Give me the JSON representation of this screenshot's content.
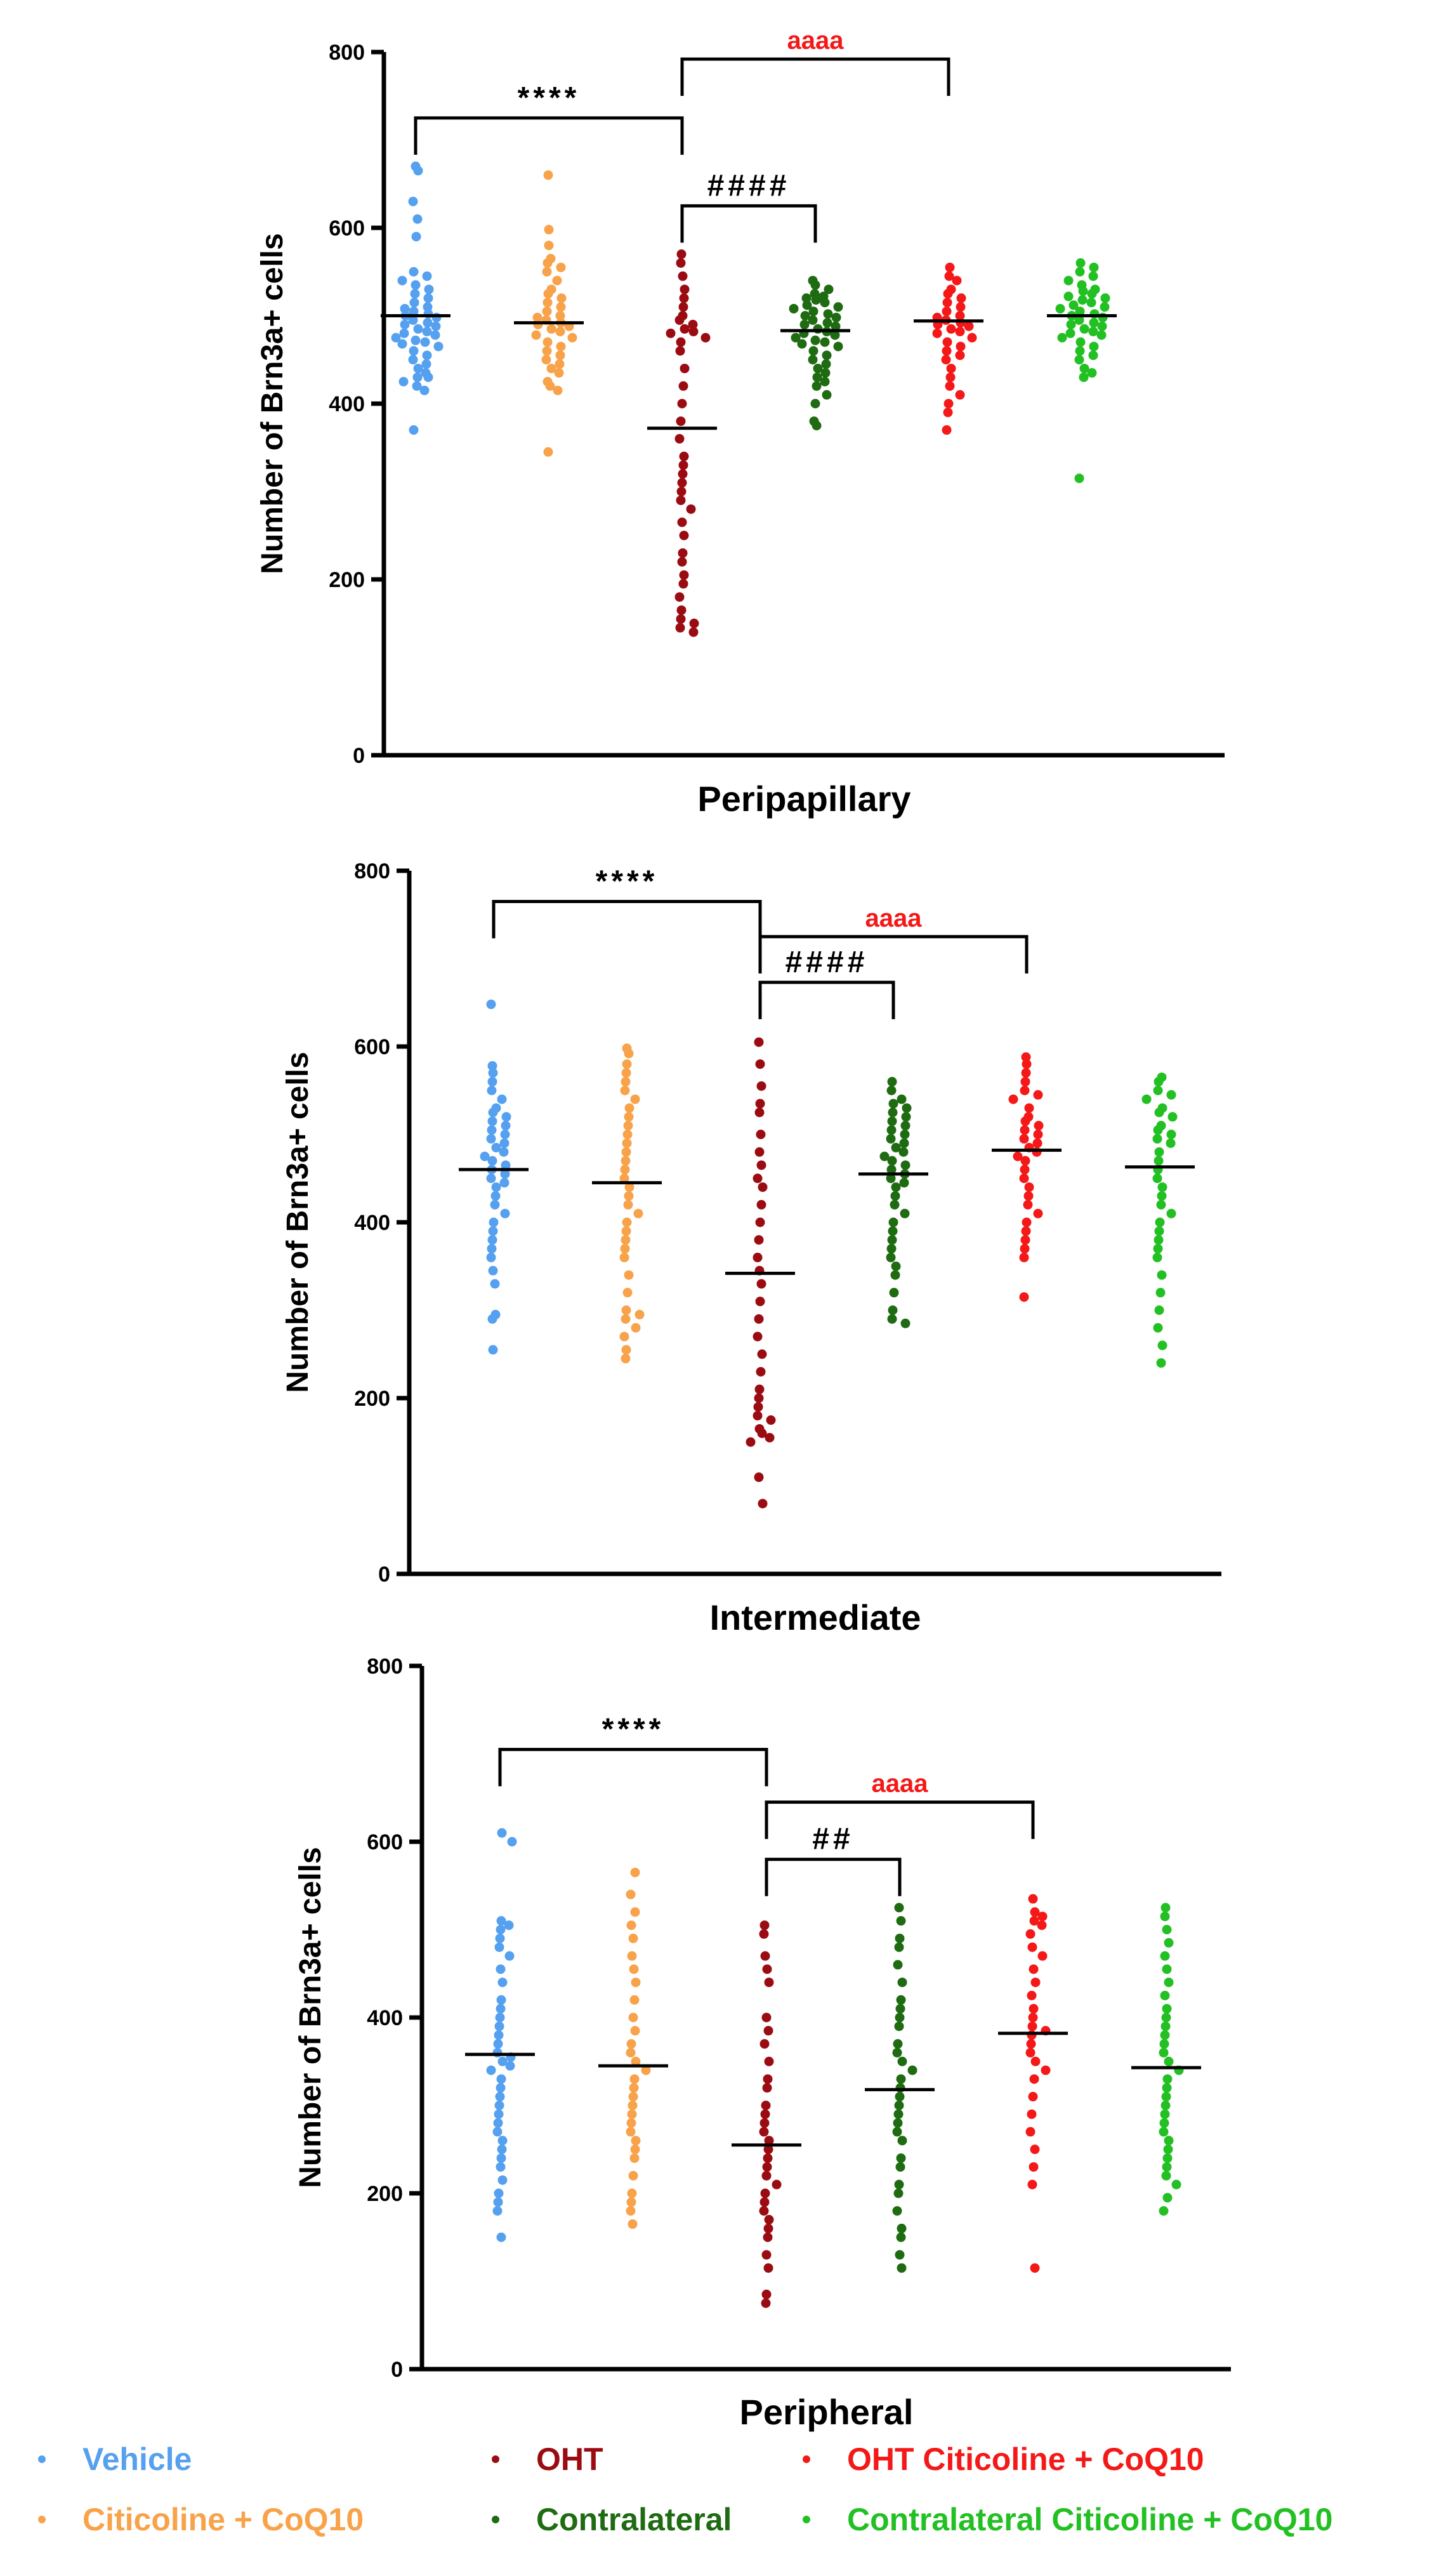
{
  "colors": {
    "Vehicle": "#56a0f0",
    "Citicoline + CoQ10": "#f8a24a",
    "OHT": "#9a0c12",
    "Contralateral": "#1e6b12",
    "OHT Citicoline + CoQ10": "#f41818",
    "Contralateral Citicoline + CoQ10": "#22c022",
    "annotation_red": "#f41818",
    "annotation_black": "#000000"
  },
  "legend": [
    {
      "label": "Vehicle",
      "color": "#56a0f0"
    },
    {
      "label": "OHT",
      "color": "#9a0c12"
    },
    {
      "label": "OHT Citicoline + CoQ10",
      "color": "#f41818"
    },
    {
      "label": "Citicoline + CoQ10",
      "color": "#f8a24a"
    },
    {
      "label": "Contralateral",
      "color": "#1e6b12"
    },
    {
      "label": "Contralateral Citicoline + CoQ10",
      "color": "#22c022"
    }
  ],
  "chart_data": [
    {
      "type": "scatter",
      "xlabel": "Peripapillary",
      "ylabel": "Number of Brn3a+ cells",
      "ylim": [
        0,
        800
      ],
      "yticks": [
        "0",
        "200",
        "400",
        "600",
        "800"
      ],
      "series": [
        {
          "name": "Vehicle",
          "median": 500,
          "values": [
            670,
            665,
            630,
            610,
            590,
            550,
            545,
            540,
            535,
            530,
            525,
            520,
            515,
            510,
            508,
            505,
            502,
            500,
            498,
            495,
            492,
            490,
            488,
            485,
            482,
            480,
            478,
            475,
            472,
            470,
            468,
            465,
            460,
            455,
            450,
            445,
            440,
            435,
            430,
            430,
            425,
            420,
            415,
            370
          ]
        },
        {
          "name": "Citicoline + CoQ10",
          "median": 492,
          "values": [
            660,
            598,
            580,
            565,
            560,
            555,
            550,
            540,
            530,
            525,
            520,
            515,
            510,
            505,
            500,
            498,
            495,
            492,
            490,
            488,
            485,
            482,
            478,
            475,
            470,
            465,
            460,
            455,
            450,
            445,
            440,
            435,
            425,
            420,
            415,
            345
          ]
        },
        {
          "name": "OHT",
          "median": 372,
          "values": [
            570,
            560,
            545,
            530,
            520,
            510,
            500,
            495,
            490,
            485,
            482,
            480,
            475,
            470,
            460,
            440,
            420,
            400,
            380,
            360,
            340,
            330,
            320,
            310,
            300,
            290,
            280,
            265,
            250,
            230,
            220,
            205,
            195,
            180,
            165,
            155,
            150,
            145,
            140
          ]
        },
        {
          "name": "Contralateral",
          "median": 483,
          "values": [
            540,
            535,
            530,
            525,
            522,
            520,
            518,
            515,
            512,
            510,
            508,
            505,
            502,
            500,
            498,
            495,
            492,
            490,
            488,
            485,
            482,
            480,
            478,
            475,
            472,
            470,
            468,
            465,
            460,
            455,
            450,
            445,
            440,
            435,
            430,
            425,
            420,
            410,
            400,
            380,
            375
          ]
        },
        {
          "name": "OHT Citicoline + CoQ10",
          "median": 494,
          "values": [
            555,
            545,
            540,
            530,
            525,
            520,
            515,
            510,
            505,
            500,
            498,
            495,
            492,
            490,
            488,
            485,
            482,
            480,
            475,
            470,
            465,
            460,
            455,
            450,
            440,
            430,
            420,
            410,
            400,
            390,
            370
          ]
        },
        {
          "name": "Contralateral Citicoline + CoQ10",
          "median": 500,
          "values": [
            560,
            555,
            550,
            545,
            540,
            535,
            530,
            528,
            525,
            522,
            520,
            518,
            515,
            512,
            510,
            508,
            505,
            502,
            500,
            498,
            495,
            492,
            490,
            488,
            485,
            482,
            480,
            478,
            475,
            470,
            465,
            460,
            455,
            450,
            440,
            435,
            430,
            315
          ]
        }
      ],
      "annotations": [
        {
          "text": "****",
          "from": "Vehicle",
          "to": "OHT",
          "level": 725,
          "color": "#000000"
        },
        {
          "text": "aaaa",
          "from": "OHT",
          "to": "OHT Citicoline + CoQ10",
          "level": 792,
          "color": "#f41818"
        },
        {
          "text": "####",
          "from": "OHT",
          "to": "Contralateral",
          "level": 625,
          "color": "#000000"
        }
      ]
    },
    {
      "type": "scatter",
      "xlabel": "Intermediate",
      "ylabel": "Number of Brn3a+ cells",
      "ylim": [
        0,
        800
      ],
      "yticks": [
        "0",
        "200",
        "400",
        "600",
        "800"
      ],
      "series": [
        {
          "name": "Vehicle",
          "median": 460,
          "values": [
            648,
            578,
            570,
            560,
            550,
            540,
            530,
            525,
            520,
            515,
            510,
            505,
            500,
            495,
            490,
            485,
            480,
            475,
            470,
            465,
            460,
            455,
            450,
            445,
            440,
            430,
            420,
            410,
            400,
            390,
            380,
            370,
            360,
            345,
            330,
            295,
            290,
            255
          ]
        },
        {
          "name": "Citicoline + CoQ10",
          "median": 445,
          "values": [
            598,
            592,
            580,
            570,
            560,
            550,
            540,
            530,
            520,
            510,
            500,
            490,
            480,
            470,
            460,
            450,
            440,
            430,
            420,
            410,
            400,
            390,
            380,
            370,
            360,
            340,
            320,
            300,
            295,
            290,
            280,
            270,
            255,
            245
          ]
        },
        {
          "name": "OHT",
          "median": 342,
          "values": [
            605,
            580,
            555,
            535,
            525,
            500,
            480,
            465,
            450,
            440,
            420,
            400,
            380,
            360,
            345,
            330,
            310,
            290,
            270,
            250,
            230,
            210,
            200,
            190,
            180,
            175,
            165,
            160,
            155,
            150,
            110,
            80
          ]
        },
        {
          "name": "Contralateral",
          "median": 455,
          "values": [
            560,
            550,
            540,
            535,
            530,
            525,
            520,
            515,
            510,
            505,
            500,
            495,
            490,
            485,
            480,
            475,
            470,
            465,
            460,
            455,
            450,
            445,
            440,
            430,
            420,
            410,
            400,
            390,
            380,
            370,
            360,
            350,
            340,
            320,
            300,
            290,
            285
          ]
        },
        {
          "name": "OHT Citicoline + CoQ10",
          "median": 482,
          "values": [
            588,
            580,
            570,
            560,
            550,
            545,
            540,
            530,
            520,
            515,
            510,
            505,
            500,
            495,
            490,
            485,
            480,
            475,
            470,
            460,
            450,
            440,
            430,
            420,
            410,
            400,
            390,
            380,
            370,
            360,
            315
          ]
        },
        {
          "name": "Contralateral Citicoline + CoQ10",
          "median": 463,
          "values": [
            565,
            560,
            550,
            545,
            540,
            530,
            525,
            520,
            510,
            505,
            500,
            495,
            490,
            480,
            470,
            460,
            450,
            440,
            430,
            420,
            410,
            400,
            390,
            380,
            370,
            360,
            340,
            320,
            300,
            280,
            260,
            240
          ]
        }
      ],
      "annotations": [
        {
          "text": "****",
          "from": "Vehicle",
          "to": "OHT",
          "level": 765,
          "color": "#000000"
        },
        {
          "text": "aaaa",
          "from": "OHT",
          "to": "OHT Citicoline + CoQ10",
          "level": 725,
          "color": "#f41818"
        },
        {
          "text": "####",
          "from": "OHT",
          "to": "Contralateral",
          "level": 673,
          "color": "#000000"
        }
      ]
    },
    {
      "type": "scatter",
      "xlabel": "Peripheral",
      "ylabel": "Number of Brn3a+ cells",
      "ylim": [
        0,
        800
      ],
      "yticks": [
        "0",
        "200",
        "400",
        "600",
        "800"
      ],
      "series": [
        {
          "name": "Vehicle",
          "median": 358,
          "values": [
            610,
            600,
            510,
            505,
            500,
            490,
            480,
            470,
            455,
            440,
            420,
            410,
            400,
            390,
            380,
            370,
            360,
            355,
            350,
            345,
            340,
            330,
            320,
            310,
            300,
            290,
            280,
            270,
            260,
            250,
            240,
            230,
            215,
            200,
            190,
            180,
            150
          ]
        },
        {
          "name": "Citicoline + CoQ10",
          "median": 345,
          "values": [
            565,
            540,
            520,
            505,
            490,
            470,
            455,
            440,
            420,
            400,
            385,
            370,
            360,
            350,
            340,
            330,
            320,
            310,
            300,
            290,
            280,
            270,
            260,
            250,
            240,
            220,
            200,
            190,
            180,
            165
          ]
        },
        {
          "name": "OHT",
          "median": 255,
          "values": [
            505,
            495,
            470,
            455,
            440,
            400,
            385,
            370,
            350,
            330,
            320,
            300,
            290,
            280,
            270,
            260,
            250,
            240,
            230,
            220,
            210,
            200,
            190,
            180,
            170,
            160,
            150,
            130,
            115,
            85,
            75
          ]
        },
        {
          "name": "Contralateral",
          "median": 318,
          "values": [
            525,
            510,
            490,
            480,
            460,
            440,
            420,
            410,
            400,
            390,
            370,
            360,
            350,
            340,
            330,
            320,
            310,
            300,
            290,
            280,
            270,
            260,
            240,
            230,
            210,
            200,
            180,
            160,
            150,
            130,
            115
          ]
        },
        {
          "name": "OHT Citicoline + CoQ10",
          "median": 382,
          "values": [
            535,
            520,
            515,
            510,
            505,
            495,
            480,
            470,
            455,
            440,
            425,
            410,
            400,
            390,
            385,
            380,
            370,
            360,
            350,
            340,
            330,
            310,
            290,
            270,
            250,
            230,
            210,
            115
          ]
        },
        {
          "name": "Contralateral Citicoline + CoQ10",
          "median": 343,
          "values": [
            525,
            515,
            500,
            485,
            470,
            455,
            440,
            425,
            410,
            400,
            390,
            380,
            370,
            360,
            350,
            340,
            330,
            320,
            310,
            300,
            290,
            280,
            270,
            260,
            250,
            240,
            230,
            220,
            210,
            195,
            180
          ]
        }
      ],
      "annotations": [
        {
          "text": "****",
          "from": "Vehicle",
          "to": "OHT",
          "level": 705,
          "color": "#000000"
        },
        {
          "text": "aaaa",
          "from": "OHT",
          "to": "OHT Citicoline + CoQ10",
          "level": 645,
          "color": "#f41818"
        },
        {
          "text": "##",
          "from": "OHT",
          "to": "Contralateral",
          "level": 580,
          "color": "#000000"
        }
      ]
    }
  ]
}
